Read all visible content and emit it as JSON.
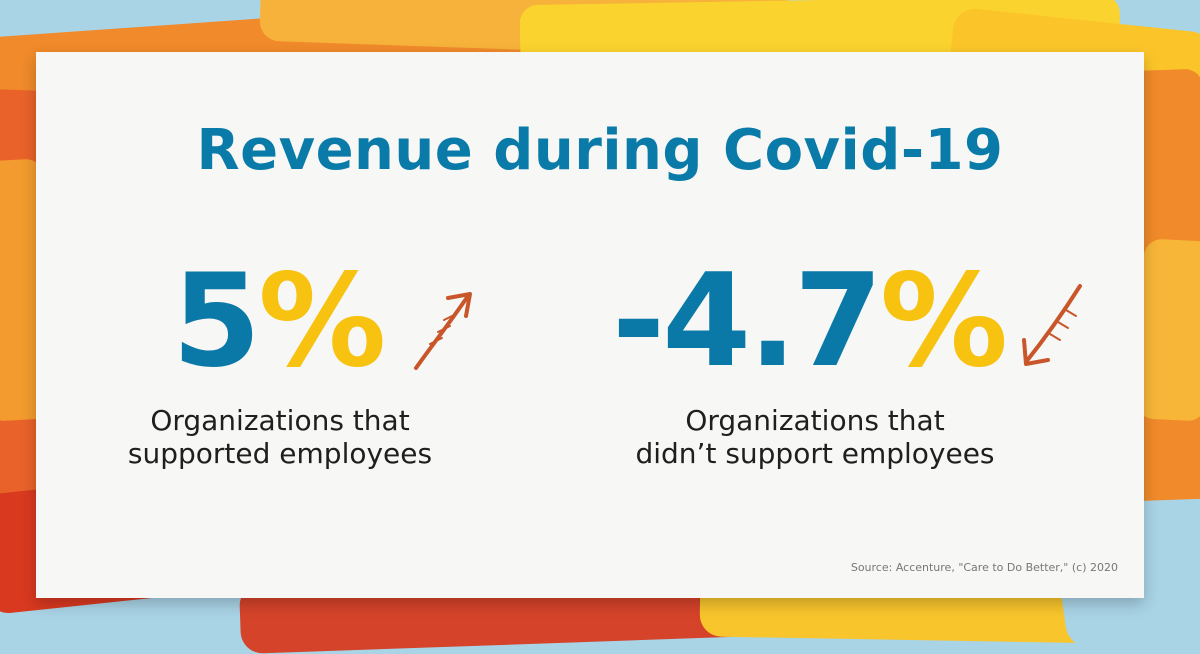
{
  "title": "Revenue during Covid-19",
  "stats": [
    {
      "value": "5",
      "unit": "%",
      "direction_icon": "arrow-up-right-icon",
      "label_line1": "Organizations that",
      "label_line2": "supported employees"
    },
    {
      "value": "-4.7",
      "unit": "%",
      "direction_icon": "arrow-down-left-icon",
      "label_line1": "Organizations that",
      "label_line2": "didn’t support employees"
    }
  ],
  "source": "Source: Accenture, \"Care to Do Better,\" (c) 2020",
  "colors": {
    "title": "#0a7ba8",
    "number": "#0a79a7",
    "percent_sign": "#f7c210",
    "arrow": "#c9562a",
    "card": "#f7f7f5",
    "background": "#a9d4e6"
  }
}
